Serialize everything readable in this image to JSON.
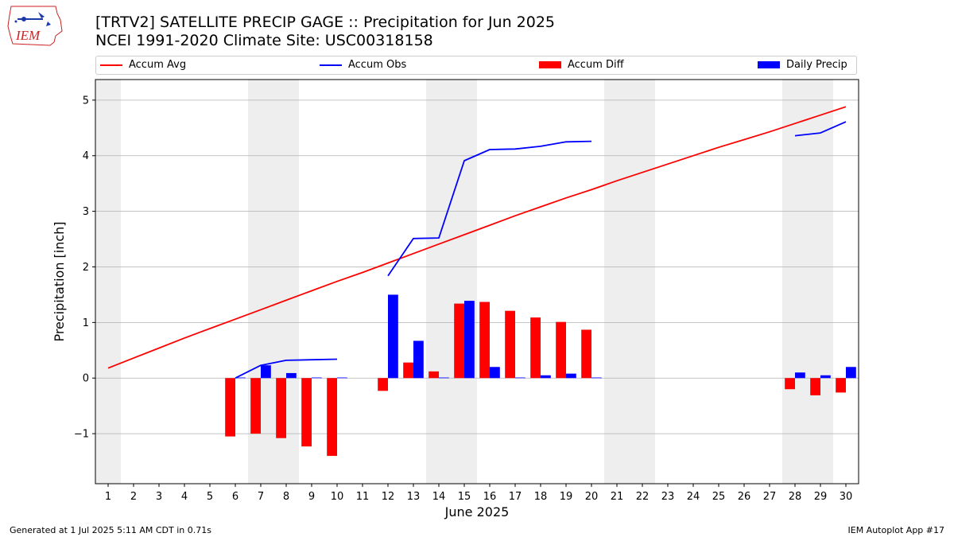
{
  "title_line1": "[TRTV2] SATELLITE PRECIP GAGE :: Precipitation for Jun 2025",
  "title_line2": "NCEI 1991-2020 Climate Site: USC00318158",
  "logo_text": "IEM",
  "footer_left": "Generated at 1 Jul 2025 5:11 AM CDT in 0.71s",
  "footer_right": "IEM Autoplot App #17",
  "colors": {
    "accum_avg": "#ff0000",
    "accum_obs": "#0000ff",
    "accum_diff": "#ff0000",
    "daily_precip": "#0000ff",
    "weekend_shade": "#eeeeee",
    "grid": "#b0b0b0"
  },
  "legend": {
    "accum_avg": "Accum Avg",
    "accum_obs": "Accum Obs",
    "accum_diff": "Accum Diff",
    "daily_precip": "Daily Precip"
  },
  "chart_data": {
    "type": "bar",
    "xlabel": "June 2025",
    "ylabel": "Precipitation [inch]",
    "xlim": [
      0.5,
      30.5
    ],
    "ylim": [
      -1.9,
      5.37
    ],
    "yticks": [
      -1,
      0,
      1,
      2,
      3,
      4,
      5
    ],
    "ytick_labels": [
      "−1",
      "0",
      "1",
      "2",
      "3",
      "4",
      "5"
    ],
    "grid": "horizontal",
    "legend_position": "top",
    "days": [
      1,
      2,
      3,
      4,
      5,
      6,
      7,
      8,
      9,
      10,
      11,
      12,
      13,
      14,
      15,
      16,
      17,
      18,
      19,
      20,
      21,
      22,
      23,
      24,
      25,
      26,
      27,
      28,
      29,
      30
    ],
    "shaded_days": [
      1,
      7,
      8,
      14,
      15,
      21,
      22,
      28,
      29
    ],
    "series": [
      {
        "name": "Accum Avg",
        "kind": "line",
        "values": [
          0.18,
          0.36,
          0.54,
          0.72,
          0.89,
          1.06,
          1.23,
          1.4,
          1.57,
          1.74,
          1.9,
          2.07,
          2.24,
          2.41,
          2.58,
          2.75,
          2.92,
          3.08,
          3.24,
          3.39,
          3.55,
          3.7,
          3.85,
          4.0,
          4.15,
          4.29,
          4.43,
          4.58,
          4.73,
          4.88
        ]
      },
      {
        "name": "Accum Obs",
        "kind": "line",
        "values": [
          null,
          null,
          null,
          null,
          null,
          0.0,
          0.23,
          0.32,
          0.33,
          0.34,
          null,
          1.84,
          2.51,
          2.52,
          3.91,
          4.11,
          4.12,
          4.17,
          4.25,
          4.26,
          null,
          null,
          null,
          null,
          null,
          null,
          null,
          4.36,
          4.41,
          4.61
        ]
      },
      {
        "name": "Accum Diff",
        "kind": "bar",
        "values": [
          null,
          null,
          null,
          null,
          null,
          -1.05,
          -1.0,
          -1.08,
          -1.23,
          -1.4,
          null,
          -0.23,
          0.28,
          0.12,
          1.34,
          1.37,
          1.21,
          1.09,
          1.01,
          0.87,
          null,
          null,
          null,
          null,
          null,
          null,
          null,
          -0.2,
          -0.31,
          -0.26
        ]
      },
      {
        "name": "Daily Precip",
        "kind": "bar",
        "values": [
          null,
          null,
          null,
          null,
          null,
          0.01,
          0.23,
          0.09,
          0.01,
          0.01,
          null,
          1.5,
          0.67,
          0.01,
          1.39,
          0.2,
          0.01,
          0.05,
          0.08,
          0.01,
          null,
          null,
          null,
          null,
          null,
          null,
          null,
          0.1,
          0.05,
          0.2
        ]
      }
    ]
  }
}
